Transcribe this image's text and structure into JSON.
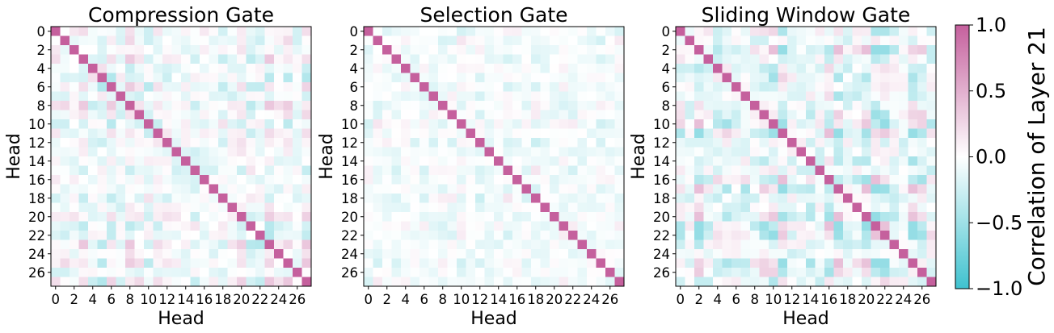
{
  "chart_data": [
    {
      "type": "heatmap",
      "title": "Compression Gate",
      "xlabel": "Head",
      "ylabel": "Head",
      "rows": 28,
      "cols": 28,
      "x_ticks": [
        "0",
        "2",
        "4",
        "6",
        "8",
        "10",
        "12",
        "14",
        "16",
        "18",
        "20",
        "22",
        "24",
        "26"
      ],
      "y_ticks": [
        "0",
        "2",
        "4",
        "6",
        "8",
        "10",
        "12",
        "14",
        "16",
        "18",
        "20",
        "22",
        "24",
        "26"
      ],
      "diagonal_value": 1.0,
      "value_range": [
        -1.0,
        1.0
      ],
      "off_diagonal_typical_range": [
        -0.45,
        0.35
      ],
      "pattern_seed": 11,
      "block_strength": 0.55
    },
    {
      "type": "heatmap",
      "title": "Selection Gate",
      "xlabel": "Head",
      "ylabel": "Head",
      "rows": 28,
      "cols": 28,
      "x_ticks": [
        "0",
        "2",
        "4",
        "6",
        "8",
        "10",
        "12",
        "14",
        "16",
        "18",
        "20",
        "22",
        "24",
        "26"
      ],
      "y_ticks": [
        "0",
        "2",
        "4",
        "6",
        "8",
        "10",
        "12",
        "14",
        "16",
        "18",
        "20",
        "22",
        "24",
        "26"
      ],
      "diagonal_value": 1.0,
      "value_range": [
        -1.0,
        1.0
      ],
      "off_diagonal_typical_range": [
        -0.3,
        0.2
      ],
      "pattern_seed": 29,
      "block_strength": 0.35
    },
    {
      "type": "heatmap",
      "title": "Sliding Window Gate",
      "xlabel": "Head",
      "ylabel": "Head",
      "rows": 28,
      "cols": 28,
      "x_ticks": [
        "0",
        "2",
        "4",
        "6",
        "8",
        "10",
        "12",
        "14",
        "16",
        "18",
        "20",
        "22",
        "24",
        "26"
      ],
      "y_ticks": [
        "0",
        "2",
        "4",
        "6",
        "8",
        "10",
        "12",
        "14",
        "16",
        "18",
        "20",
        "22",
        "24",
        "26"
      ],
      "diagonal_value": 1.0,
      "value_range": [
        -1.0,
        1.0
      ],
      "off_diagonal_typical_range": [
        -0.55,
        0.4
      ],
      "pattern_seed": 47,
      "block_strength": 0.7
    }
  ],
  "colorbar": {
    "label": "Correlation of Layer 21",
    "ticks": [
      "1.0",
      "0.5",
      "0.0",
      "−0.5",
      "−1.0"
    ],
    "tick_values": [
      1.0,
      0.5,
      0.0,
      -0.5,
      -1.0
    ],
    "range": [
      -1.0,
      1.0
    ]
  },
  "colors": {
    "negative": "#3fc2cf",
    "zero": "#ffffff",
    "positive": "#c5609d"
  }
}
